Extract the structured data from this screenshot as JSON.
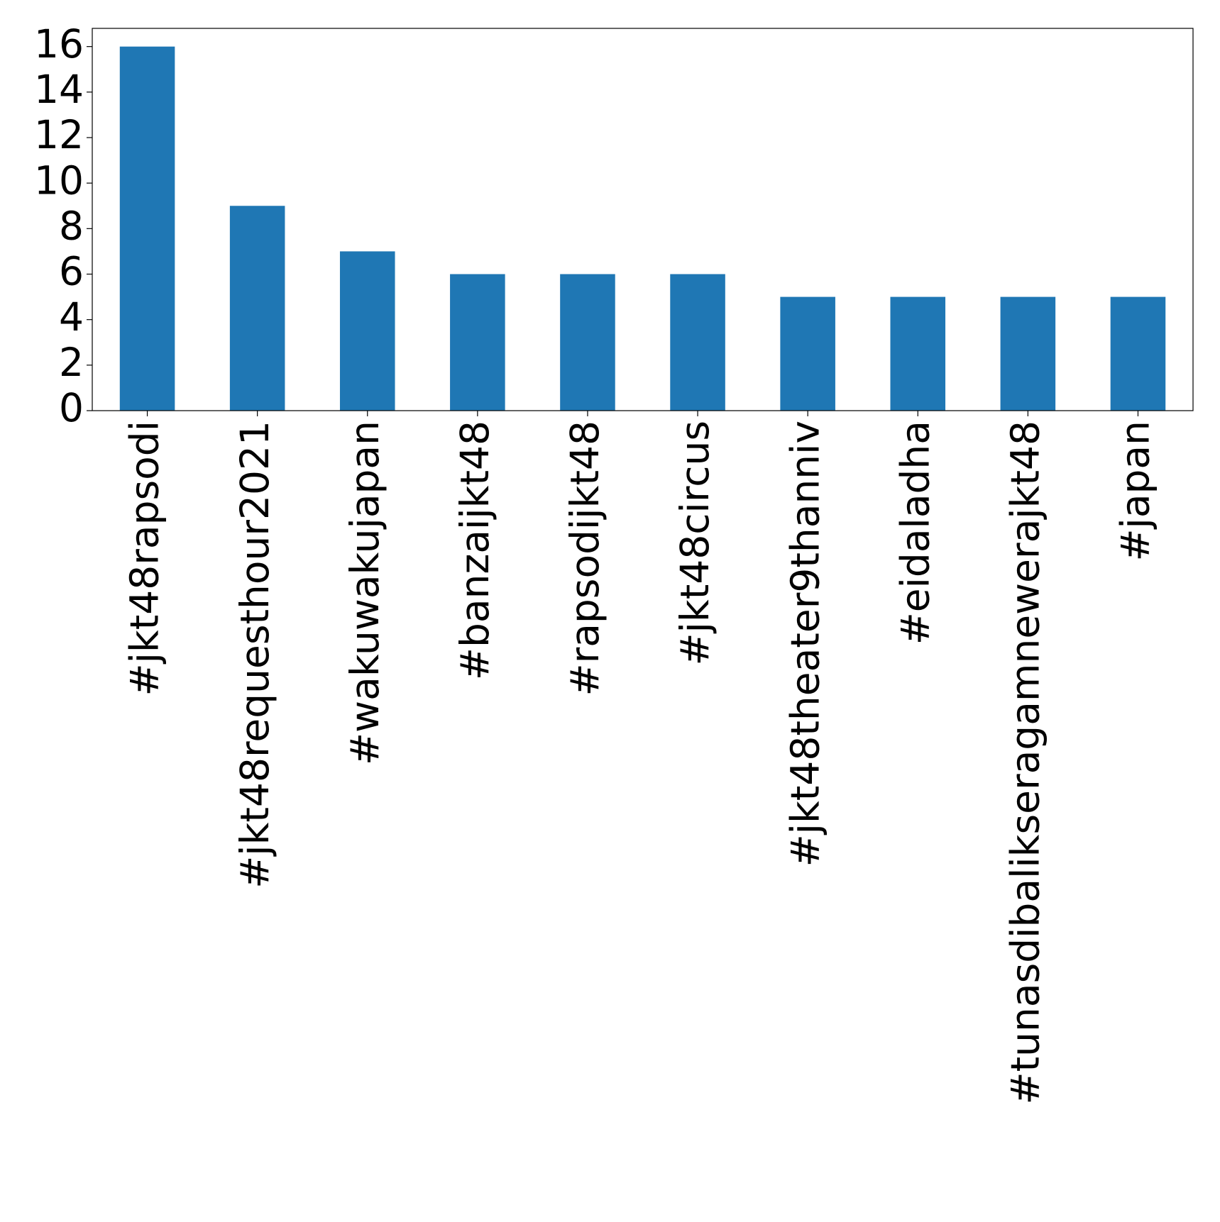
{
  "chart_data": {
    "type": "bar",
    "categories": [
      "#jkt48rapsodi",
      "#jkt48requesthour2021",
      "#wakuwakujapan",
      "#banzaijkt48",
      "#rapsodijkt48",
      "#jkt48circus",
      "#jkt48theater9thanniv",
      "#eidaladha",
      "#tunasdibalikseragamnewerajkt48",
      "#japan"
    ],
    "values": [
      16,
      9,
      7,
      6,
      6,
      6,
      5,
      5,
      5,
      5
    ],
    "color": "#1f77b4",
    "ylim": [
      0,
      16.8
    ],
    "yticks": [
      0,
      2,
      4,
      6,
      8,
      10,
      12,
      14,
      16
    ],
    "grid": false
  }
}
